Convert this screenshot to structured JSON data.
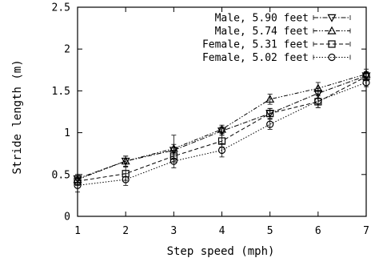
{
  "chart_data": {
    "type": "line",
    "title": "",
    "xlabel": "Step speed (mph)",
    "ylabel": "Stride length (m)",
    "xlim": [
      1,
      7
    ],
    "ylim": [
      0,
      2.5
    ],
    "x_ticks": [
      "1",
      "2",
      "3",
      "4",
      "5",
      "6",
      "7"
    ],
    "y_ticks": [
      "0",
      "0.5",
      "1",
      "1.5",
      "2",
      "2.5"
    ],
    "grid": false,
    "legend_position": "top-right",
    "x": [
      1,
      2,
      3,
      4,
      5,
      6,
      7
    ],
    "series": [
      {
        "name": "Male, 5.90 feet",
        "marker": "triangle-down",
        "dash": "dash-dot",
        "values": [
          0.45,
          0.66,
          0.79,
          1.02,
          1.23,
          1.47,
          1.68
        ],
        "errors": [
          0.05,
          0.06,
          0.07,
          0.05,
          0.06,
          0.06,
          0.05
        ]
      },
      {
        "name": "Male, 5.74 feet",
        "marker": "triangle-up",
        "dash": "dash-dot-dot",
        "values": [
          0.44,
          0.66,
          0.81,
          1.04,
          1.4,
          1.53,
          1.7
        ],
        "errors": [
          0.06,
          0.06,
          0.16,
          0.05,
          0.06,
          0.07,
          0.06
        ]
      },
      {
        "name": "Female, 5.31 feet",
        "marker": "square",
        "dash": "dashed",
        "values": [
          0.42,
          0.51,
          0.72,
          0.9,
          1.23,
          1.37,
          1.67
        ],
        "errors": [
          0.05,
          0.08,
          0.07,
          0.07,
          0.06,
          0.07,
          0.05
        ]
      },
      {
        "name": "Female, 5.02 feet",
        "marker": "circle",
        "dash": "dotted",
        "values": [
          0.37,
          0.44,
          0.66,
          0.79,
          1.1,
          1.38,
          1.6
        ],
        "errors": [
          0.08,
          0.07,
          0.08,
          0.08,
          0.06,
          0.08,
          0.05
        ]
      }
    ]
  }
}
